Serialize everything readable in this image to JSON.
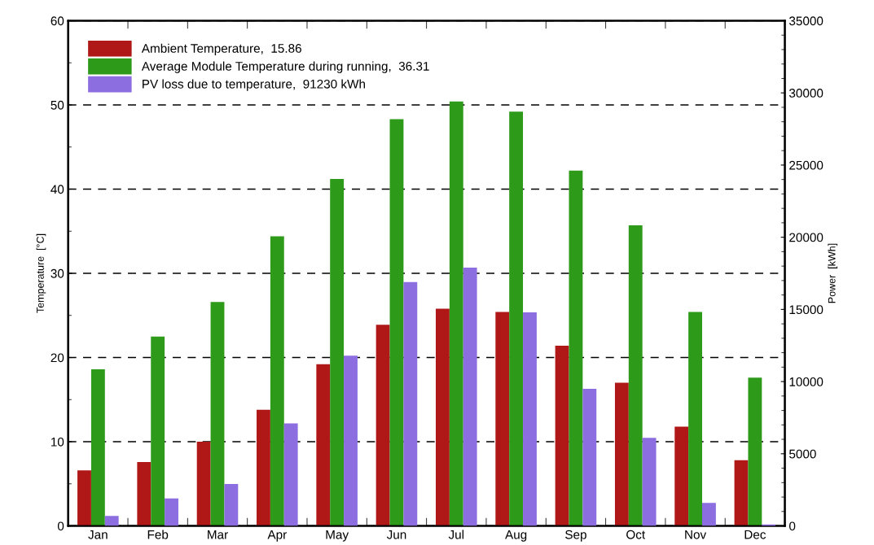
{
  "chart_data": {
    "type": "bar",
    "categories": [
      "Jan",
      "Feb",
      "Mar",
      "Apr",
      "May",
      "Jun",
      "Jul",
      "Aug",
      "Sep",
      "Oct",
      "Nov",
      "Dec"
    ],
    "ylabel": "Temperature  [°C]",
    "y2label": "Power  [kWh]",
    "series": [
      {
        "name": "Ambient Temperature,  15.86",
        "color": "#b01818",
        "values": [
          6.6,
          7.6,
          10.0,
          13.8,
          19.2,
          23.9,
          25.8,
          25.4,
          21.4,
          17.0,
          11.8,
          7.8
        ]
      },
      {
        "name": "Average Module Temperature during running,  36.31",
        "color": "#2e9a1a",
        "values": [
          18.6,
          22.5,
          26.6,
          34.4,
          41.2,
          48.3,
          50.4,
          49.2,
          42.2,
          35.7,
          25.4,
          17.6
        ]
      },
      {
        "name": "PV loss due to temperature,  91230 kWh",
        "color": "#8c6ee0",
        "axis": "y2",
        "values": [
          700,
          1900,
          2900,
          7100,
          11800,
          16900,
          17900,
          14800,
          9500,
          6100,
          1600,
          100
        ]
      }
    ],
    "ylim": [
      0,
      60
    ],
    "yticks": [
      0,
      10,
      20,
      30,
      40,
      50,
      60
    ],
    "y2lim": [
      0,
      35000
    ],
    "y2ticks": [
      0,
      5000,
      10000,
      15000,
      20000,
      25000,
      30000,
      35000
    ],
    "grid": "y",
    "legend": "top left"
  }
}
